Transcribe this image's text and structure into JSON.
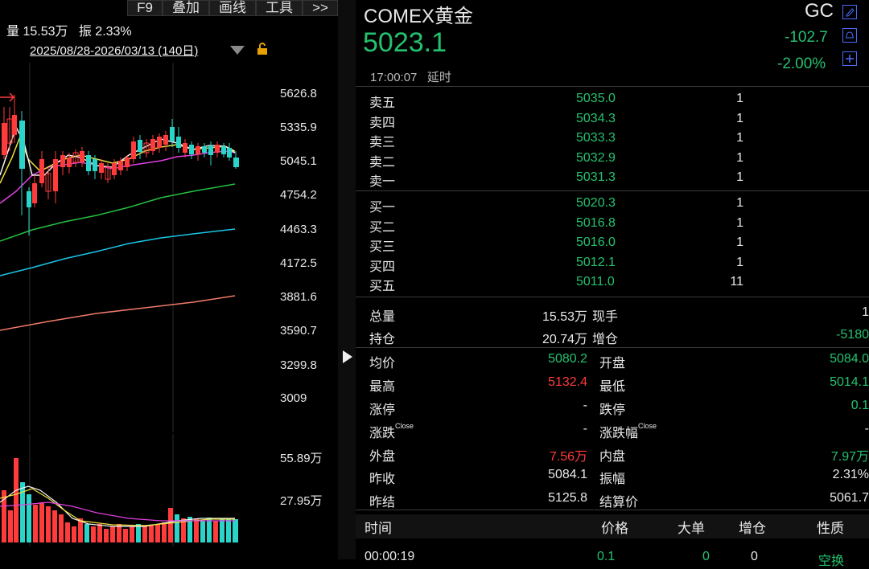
{
  "toolbar": {
    "items": [
      "F9",
      "叠加",
      "画线",
      "工具",
      ">>"
    ]
  },
  "chart": {
    "info_volume": "量 15.53万",
    "info_amplitude": "振 2.33%",
    "date_range": "2025/08/28-2026/03/13 (140日)",
    "price_axis": [
      "5626.8",
      "5335.9",
      "5045.1",
      "4754.2",
      "4463.3",
      "4172.5",
      "3881.6",
      "3590.7",
      "3299.8",
      "3009"
    ],
    "volume_axis": [
      "55.89万",
      "27.95万"
    ]
  },
  "header": {
    "title": "COMEX黄金",
    "code": "GC",
    "price": "5023.1",
    "change": "-102.7",
    "change_pct": "-2.00%",
    "time": "17:00:07",
    "delay": "延时"
  },
  "orderbook": {
    "asks": [
      {
        "name": "卖五",
        "price": "5035.0",
        "vol": "1"
      },
      {
        "name": "卖四",
        "price": "5034.3",
        "vol": "1"
      },
      {
        "name": "卖三",
        "price": "5033.3",
        "vol": "1"
      },
      {
        "name": "卖二",
        "price": "5032.9",
        "vol": "1"
      },
      {
        "name": "卖一",
        "price": "5031.3",
        "vol": "1"
      }
    ],
    "bids": [
      {
        "name": "买一",
        "price": "5020.3",
        "vol": "1"
      },
      {
        "name": "买二",
        "price": "5016.8",
        "vol": "1"
      },
      {
        "name": "买三",
        "price": "5016.0",
        "vol": "1"
      },
      {
        "name": "买四",
        "price": "5012.1",
        "vol": "1"
      },
      {
        "name": "买五",
        "price": "5011.0",
        "vol": "11"
      }
    ]
  },
  "stats": {
    "total_vol_label": "总量",
    "total_vol": "15.53万",
    "current_hand_label": "现手",
    "current_hand": "1",
    "open_interest_label": "持仓",
    "open_interest": "20.74万",
    "oi_change_label": "增仓",
    "oi_change": "-5180",
    "avg_label": "均价",
    "avg": "5080.2",
    "open_label": "开盘",
    "open": "5084.0",
    "high_label": "最高",
    "high": "5132.4",
    "low_label": "最低",
    "low": "5014.1",
    "limit_up_label": "涨停",
    "limit_up": "-",
    "limit_down_label": "跌停",
    "limit_down": "0.1",
    "chg_close_label": "涨跌",
    "chg_close_sup": "Close",
    "chg_close": "-",
    "chgpct_close_label": "涨跌幅",
    "chgpct_close_sup": "Close",
    "chgpct_close": "-",
    "outer_label": "外盘",
    "outer": "7.56万",
    "inner_label": "内盘",
    "inner": "7.97万",
    "prev_close_label": "昨收",
    "prev_close": "5084.1",
    "amplitude_label": "振幅",
    "amplitude": "2.31%",
    "prev_settle_label": "昨结",
    "prev_settle": "5125.8",
    "settle_label": "结算价",
    "settle": "5061.7"
  },
  "trades": {
    "headers": [
      "时间",
      "价格",
      "大单",
      "增仓",
      "性质"
    ],
    "first_row": {
      "time": "00:00:19",
      "price": "0.1",
      "big": "0",
      "oi": "0",
      "nature": "空换"
    }
  },
  "colors": {
    "up": "#ff3b3b",
    "down": "#25c16f",
    "accent_icon": "#4a6cff"
  }
}
